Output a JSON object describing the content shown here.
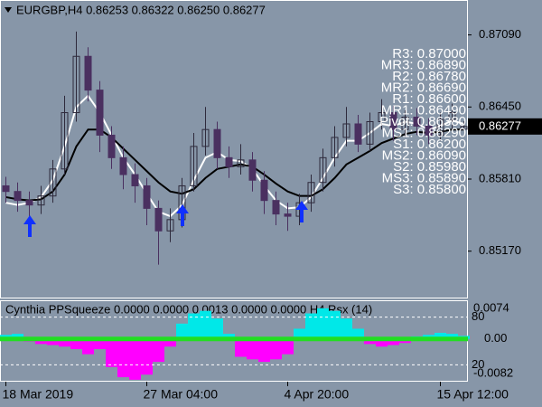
{
  "chart_data": [
    {
      "type": "candlestick",
      "title": "EURGBP,H4  0.86253 0.86322 0.86250 0.86277",
      "open": [
        0.8575,
        0.857,
        0.8562,
        0.8558,
        0.8566,
        0.859,
        0.864,
        0.869,
        0.866,
        0.862,
        0.86,
        0.8585,
        0.8575,
        0.8555,
        0.8535,
        0.8545,
        0.8575,
        0.861,
        0.8625,
        0.86,
        0.8592,
        0.8598,
        0.858,
        0.8562,
        0.855,
        0.8548,
        0.856,
        0.8578,
        0.86,
        0.8618,
        0.863,
        0.8612,
        0.8632,
        0.864,
        0.8625,
        0.8636,
        0.8628,
        0.862,
        0.8634,
        0.86253
      ],
      "high": [
        0.8583,
        0.8578,
        0.857,
        0.8575,
        0.8598,
        0.8655,
        0.8712,
        0.8698,
        0.8668,
        0.8628,
        0.861,
        0.8595,
        0.8582,
        0.8562,
        0.8555,
        0.8582,
        0.8622,
        0.8645,
        0.8632,
        0.861,
        0.8612,
        0.8605,
        0.8588,
        0.857,
        0.856,
        0.8568,
        0.8585,
        0.8608,
        0.8628,
        0.8645,
        0.8638,
        0.864,
        0.8652,
        0.8646,
        0.8642,
        0.8644,
        0.8635,
        0.864,
        0.8648,
        0.86322
      ],
      "low": [
        0.856,
        0.8552,
        0.8548,
        0.855,
        0.856,
        0.8585,
        0.8632,
        0.865,
        0.8605,
        0.859,
        0.8572,
        0.856,
        0.854,
        0.8505,
        0.8525,
        0.8538,
        0.857,
        0.8602,
        0.859,
        0.8582,
        0.8585,
        0.857,
        0.855,
        0.854,
        0.8535,
        0.854,
        0.8552,
        0.857,
        0.8592,
        0.861,
        0.8605,
        0.8606,
        0.8625,
        0.8615,
        0.8618,
        0.862,
        0.8612,
        0.8615,
        0.8626,
        0.8625
      ],
      "close": [
        0.857,
        0.8562,
        0.8558,
        0.8566,
        0.859,
        0.864,
        0.869,
        0.866,
        0.862,
        0.86,
        0.8585,
        0.8575,
        0.8555,
        0.8535,
        0.8545,
        0.8575,
        0.861,
        0.8625,
        0.86,
        0.8592,
        0.8598,
        0.858,
        0.8562,
        0.855,
        0.8548,
        0.856,
        0.8578,
        0.86,
        0.8618,
        0.863,
        0.8612,
        0.8632,
        0.864,
        0.8625,
        0.8636,
        0.8628,
        0.862,
        0.8634,
        0.864,
        0.86277
      ],
      "up_color": "#2e2a3c",
      "down_color": "#4a3060",
      "series": [
        {
          "color": "#ffffff",
          "values": [
            0.856,
            0.8558,
            0.856,
            0.8565,
            0.858,
            0.861,
            0.8645,
            0.8655,
            0.864,
            0.862,
            0.86,
            0.8585,
            0.8568,
            0.8552,
            0.8548,
            0.8558,
            0.858,
            0.86,
            0.8605,
            0.8598,
            0.8597,
            0.859,
            0.8575,
            0.8562,
            0.8555,
            0.8556,
            0.8565,
            0.8582,
            0.86,
            0.8615,
            0.8615,
            0.8622,
            0.863,
            0.8628,
            0.8632,
            0.863,
            0.8625,
            0.8628,
            0.8633,
            0.863
          ]
        },
        {
          "color": "#000000",
          "values": [
            0.8565,
            0.8563,
            0.8562,
            0.8563,
            0.857,
            0.8585,
            0.861,
            0.8625,
            0.8625,
            0.8618,
            0.8608,
            0.8598,
            0.8588,
            0.8578,
            0.857,
            0.8568,
            0.8572,
            0.8582,
            0.859,
            0.8592,
            0.8594,
            0.8592,
            0.8585,
            0.8577,
            0.857,
            0.8566,
            0.8566,
            0.8572,
            0.8582,
            0.8594,
            0.86,
            0.8606,
            0.8613,
            0.8617,
            0.8621,
            0.8623,
            0.8622,
            0.8623,
            0.8625,
            0.8625
          ]
        }
      ],
      "ylim": [
        0.8475,
        0.874
      ],
      "yticks": [
        {
          "value": 0.8517,
          "label": "0.85170"
        },
        {
          "value": 0.8581,
          "label": "0.85810"
        },
        {
          "value": 0.8645,
          "label": "0.86450"
        },
        {
          "value": 0.8709,
          "label": "0.87090"
        }
      ],
      "pivot_labels": [
        "R3: 0.87000",
        "MR3: 0.86890",
        "R2: 0.86780",
        "MR2: 0.86690",
        "R1: 0.86600",
        "MR1: 0.86490",
        "Pivot: 0.86380",
        "MS1: 0.86290",
        "S1: 0.86200",
        "MS2: 0.86090",
        "S2: 0.85980",
        "MS3: 0.85890",
        "S3: 0.85800"
      ],
      "pivot_color": "#ffffff"
    },
    {
      "type": "bar",
      "title": "Cynthia PPSqueeze 0.0000 0.0000 0.0013 0.0000 0.0000  H4  Rsx (14)",
      "values": [
        0.0008,
        0.001,
        -0.0005,
        -0.001,
        -0.0012,
        -0.0015,
        -0.002,
        -0.003,
        -0.002,
        -0.0055,
        -0.0075,
        -0.008,
        -0.007,
        -0.0045,
        -0.0015,
        0.003,
        0.005,
        0.0055,
        0.004,
        0.001,
        -0.0035,
        -0.004,
        -0.0045,
        -0.004,
        -0.003,
        0.002,
        0.005,
        0.006,
        0.0055,
        0.004,
        0.002,
        -0.001,
        -0.0015,
        -0.0012,
        -0.0008,
        0.0005,
        0.0008,
        0.0012,
        0.001,
        0.0006
      ],
      "pos_color": "#00e8e8",
      "neg_color": "#ff00ff",
      "ylim": [
        -0.0082,
        0.0074
      ],
      "yticks": [
        -0.0082,
        {
          "value": 0,
          "label": "0.00"
        },
        0.0074
      ],
      "y2lim": [
        0,
        100
      ],
      "y2ticks": [
        20,
        80
      ],
      "xticks": [
        {
          "value": 0,
          "label": "18 Mar 2019"
        },
        {
          "value": 12,
          "label": "27 Mar 04:00"
        },
        {
          "value": 24,
          "label": "4 Apr 20:00"
        },
        {
          "value": 37,
          "label": "15 Apr 12:00"
        }
      ]
    }
  ]
}
